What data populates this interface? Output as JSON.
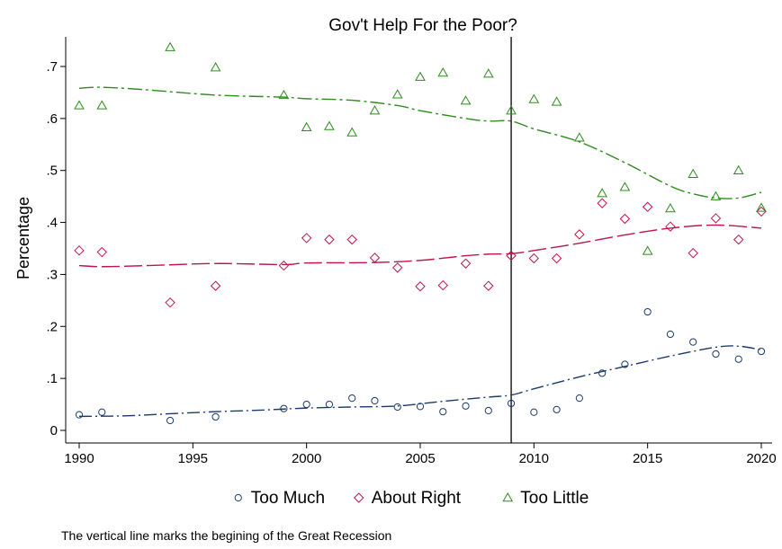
{
  "chart_data": {
    "type": "scatter",
    "title": "Gov't Help For the Poor?",
    "xlabel": "",
    "ylabel": "Percentage",
    "xlim": [
      1990,
      2020
    ],
    "ylim": [
      0,
      0.75
    ],
    "x_ticks": [
      1990,
      1995,
      2000,
      2005,
      2010,
      2015,
      2020
    ],
    "y_ticks": [
      0,
      0.1,
      0.2,
      0.3,
      0.4,
      0.5,
      0.6,
      0.7
    ],
    "y_tick_labels": [
      "0",
      ".1",
      ".2",
      ".3",
      ".4",
      ".5",
      ".6",
      ".7"
    ],
    "grid": false,
    "legend_position": "bottom",
    "vertical_line_x": 2009,
    "note": "The vertical line marks the begining of the Great Recession",
    "series": [
      {
        "name": "Too Much",
        "marker": "circle",
        "color": "#1a3a6b",
        "points": [
          [
            1990,
            0.03
          ],
          [
            1991,
            0.035
          ],
          [
            1994,
            0.019
          ],
          [
            1996,
            0.026
          ],
          [
            1999,
            0.042
          ],
          [
            2000,
            0.05
          ],
          [
            2001,
            0.05
          ],
          [
            2002,
            0.062
          ],
          [
            2003,
            0.057
          ],
          [
            2004,
            0.045
          ],
          [
            2005,
            0.046
          ],
          [
            2006,
            0.036
          ],
          [
            2007,
            0.047
          ],
          [
            2008,
            0.038
          ],
          [
            2009,
            0.052
          ],
          [
            2010,
            0.035
          ],
          [
            2011,
            0.04
          ],
          [
            2012,
            0.062
          ],
          [
            2013,
            0.11
          ],
          [
            2014,
            0.127
          ],
          [
            2015,
            0.228
          ],
          [
            2016,
            0.185
          ],
          [
            2017,
            0.17
          ],
          [
            2018,
            0.147
          ],
          [
            2019,
            0.137
          ],
          [
            2020,
            0.152
          ]
        ],
        "trend": [
          [
            1990,
            0.027
          ],
          [
            1992,
            0.028
          ],
          [
            1994,
            0.032
          ],
          [
            1996,
            0.036
          ],
          [
            1998,
            0.039
          ],
          [
            2000,
            0.043
          ],
          [
            2002,
            0.045
          ],
          [
            2004,
            0.047
          ],
          [
            2006,
            0.056
          ],
          [
            2008,
            0.064
          ],
          [
            2009,
            0.068
          ],
          [
            2010,
            0.08
          ],
          [
            2012,
            0.103
          ],
          [
            2014,
            0.123
          ],
          [
            2016,
            0.143
          ],
          [
            2018,
            0.16
          ],
          [
            2019,
            0.162
          ],
          [
            2020,
            0.155
          ]
        ]
      },
      {
        "name": "About Right",
        "marker": "diamond",
        "color": "#c0144a",
        "points": [
          [
            1990,
            0.346
          ],
          [
            1991,
            0.343
          ],
          [
            1994,
            0.246
          ],
          [
            1996,
            0.278
          ],
          [
            1999,
            0.317
          ],
          [
            2000,
            0.37
          ],
          [
            2001,
            0.367
          ],
          [
            2002,
            0.367
          ],
          [
            2003,
            0.332
          ],
          [
            2004,
            0.313
          ],
          [
            2005,
            0.277
          ],
          [
            2006,
            0.279
          ],
          [
            2007,
            0.321
          ],
          [
            2008,
            0.278
          ],
          [
            2009,
            0.336
          ],
          [
            2010,
            0.331
          ],
          [
            2011,
            0.331
          ],
          [
            2012,
            0.377
          ],
          [
            2013,
            0.437
          ],
          [
            2014,
            0.407
          ],
          [
            2015,
            0.43
          ],
          [
            2016,
            0.392
          ],
          [
            2017,
            0.341
          ],
          [
            2018,
            0.408
          ],
          [
            2019,
            0.367
          ],
          [
            2020,
            0.421
          ]
        ],
        "trend": [
          [
            1990,
            0.317
          ],
          [
            1991,
            0.315
          ],
          [
            1993,
            0.317
          ],
          [
            1996,
            0.321
          ],
          [
            1999,
            0.319
          ],
          [
            2000,
            0.322
          ],
          [
            2003,
            0.323
          ],
          [
            2005,
            0.327
          ],
          [
            2007,
            0.336
          ],
          [
            2008,
            0.339
          ],
          [
            2009,
            0.34
          ],
          [
            2010,
            0.346
          ],
          [
            2012,
            0.36
          ],
          [
            2014,
            0.376
          ],
          [
            2016,
            0.389
          ],
          [
            2018,
            0.395
          ],
          [
            2020,
            0.389
          ]
        ]
      },
      {
        "name": "Too Little",
        "marker": "triangle",
        "color": "#2e8b1e",
        "points": [
          [
            1990,
            0.625
          ],
          [
            1991,
            0.625
          ],
          [
            1994,
            0.737
          ],
          [
            1996,
            0.698
          ],
          [
            1999,
            0.645
          ],
          [
            2000,
            0.583
          ],
          [
            2001,
            0.585
          ],
          [
            2002,
            0.573
          ],
          [
            2003,
            0.615
          ],
          [
            2004,
            0.646
          ],
          [
            2005,
            0.68
          ],
          [
            2006,
            0.688
          ],
          [
            2007,
            0.634
          ],
          [
            2008,
            0.686
          ],
          [
            2009,
            0.615
          ],
          [
            2010,
            0.637
          ],
          [
            2011,
            0.632
          ],
          [
            2012,
            0.563
          ],
          [
            2013,
            0.456
          ],
          [
            2014,
            0.468
          ],
          [
            2015,
            0.345
          ],
          [
            2016,
            0.427
          ],
          [
            2017,
            0.493
          ],
          [
            2018,
            0.45
          ],
          [
            2019,
            0.5
          ],
          [
            2020,
            0.428
          ]
        ],
        "trend": [
          [
            1990,
            0.658
          ],
          [
            1991,
            0.66
          ],
          [
            1993,
            0.655
          ],
          [
            1996,
            0.645
          ],
          [
            1999,
            0.641
          ],
          [
            2000,
            0.638
          ],
          [
            2002,
            0.635
          ],
          [
            2004,
            0.625
          ],
          [
            2005,
            0.615
          ],
          [
            2007,
            0.6
          ],
          [
            2008,
            0.595
          ],
          [
            2009,
            0.595
          ],
          [
            2010,
            0.58
          ],
          [
            2012,
            0.555
          ],
          [
            2014,
            0.515
          ],
          [
            2016,
            0.47
          ],
          [
            2017,
            0.455
          ],
          [
            2018,
            0.447
          ],
          [
            2019,
            0.447
          ],
          [
            2020,
            0.458
          ]
        ]
      }
    ]
  }
}
